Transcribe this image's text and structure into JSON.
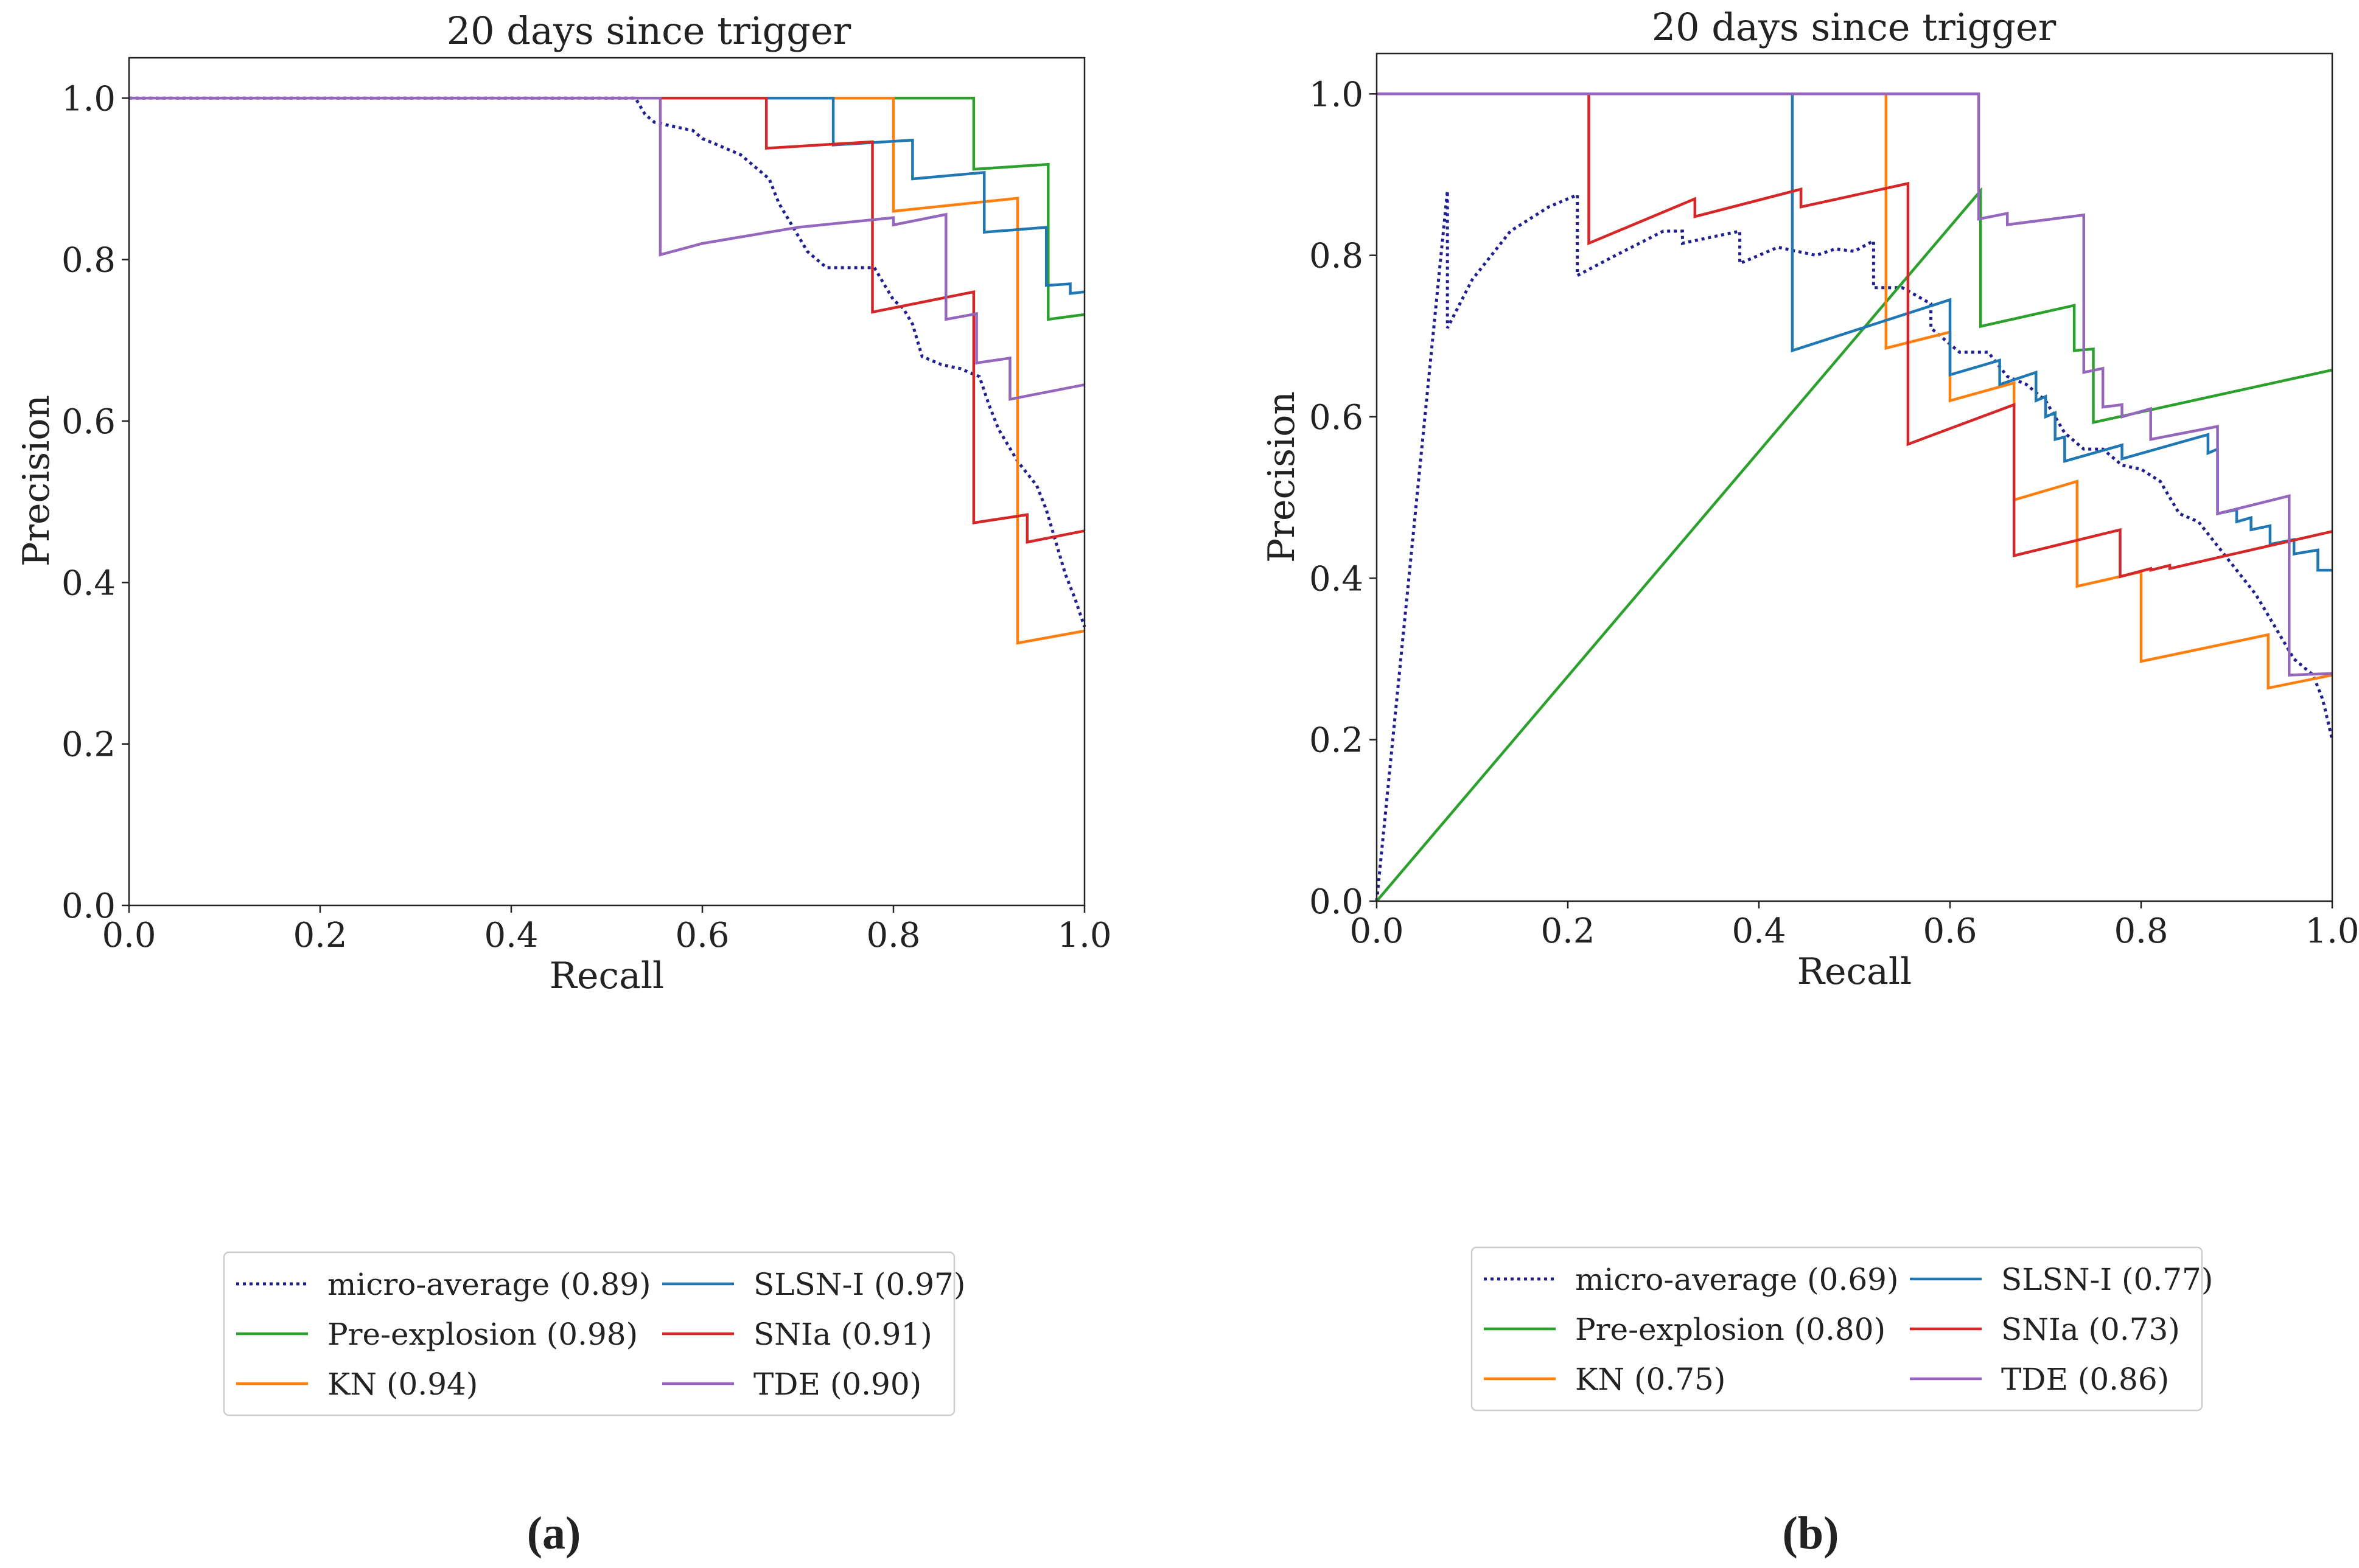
{
  "colors": {
    "micro": "#1f1f8f",
    "preexp": "#2ca02c",
    "kn": "#ff7f0e",
    "slsn": "#1f77b4",
    "snia": "#d62728",
    "tde": "#9467bd",
    "axis": "#222222"
  },
  "panels": [
    {
      "label_open": "(",
      "label_letter": "a",
      "label_close": ")"
    },
    {
      "label_open": "(",
      "label_letter": "b",
      "label_close": ")"
    }
  ],
  "chart_data": [
    {
      "type": "line",
      "title": "20 days since trigger",
      "xlabel": "Recall",
      "ylabel": "Precision",
      "xlim": [
        0,
        1
      ],
      "ylim": [
        0,
        1.05
      ],
      "xticks": [
        0.0,
        0.2,
        0.4,
        0.6,
        0.8,
        1.0
      ],
      "xtick_labels": [
        "0.0",
        "0.2",
        "0.4",
        "0.6",
        "0.8",
        "1.0"
      ],
      "yticks": [
        0.0,
        0.2,
        0.4,
        0.6,
        0.8,
        1.0
      ],
      "ytick_labels": [
        "0.0",
        "0.2",
        "0.4",
        "0.6",
        "0.8",
        "1.0"
      ],
      "legend": {
        "placement": "below-center",
        "columns": 2
      },
      "series": [
        {
          "name": "micro-average",
          "auc": "(0.89)",
          "color_key": "micro",
          "style": "dotted",
          "points": [
            [
              0,
              1
            ],
            [
              0.53,
              1
            ],
            [
              0.54,
              0.98
            ],
            [
              0.55,
              0.97
            ],
            [
              0.57,
              0.965
            ],
            [
              0.59,
              0.96
            ],
            [
              0.6,
              0.95
            ],
            [
              0.62,
              0.94
            ],
            [
              0.64,
              0.93
            ],
            [
              0.65,
              0.92
            ],
            [
              0.67,
              0.9
            ],
            [
              0.68,
              0.87
            ],
            [
              0.69,
              0.85
            ],
            [
              0.7,
              0.83
            ],
            [
              0.71,
              0.81
            ],
            [
              0.72,
              0.8
            ],
            [
              0.73,
              0.79
            ],
            [
              0.75,
              0.79
            ],
            [
              0.78,
              0.79
            ],
            [
              0.79,
              0.77
            ],
            [
              0.8,
              0.75
            ],
            [
              0.81,
              0.74
            ],
            [
              0.82,
              0.72
            ],
            [
              0.83,
              0.68
            ],
            [
              0.85,
              0.67
            ],
            [
              0.87,
              0.665
            ],
            [
              0.89,
              0.655
            ],
            [
              0.9,
              0.62
            ],
            [
              0.91,
              0.59
            ],
            [
              0.93,
              0.55
            ],
            [
              0.95,
              0.52
            ],
            [
              0.96,
              0.49
            ],
            [
              0.97,
              0.45
            ],
            [
              0.98,
              0.41
            ],
            [
              0.99,
              0.38
            ],
            [
              1.0,
              0.345
            ]
          ]
        },
        {
          "name": "Pre-explosion",
          "auc": "(0.98)",
          "color_key": "preexp",
          "style": "solid",
          "points": [
            [
              0,
              1
            ],
            [
              0.884,
              1
            ],
            [
              0.884,
              0.912
            ],
            [
              0.962,
              0.918
            ],
            [
              0.962,
              0.726
            ],
            [
              1.0,
              0.732
            ]
          ]
        },
        {
          "name": "KN",
          "auc": "(0.94)",
          "color_key": "kn",
          "style": "solid",
          "points": [
            [
              0,
              1
            ],
            [
              0.8,
              1
            ],
            [
              0.8,
              0.86
            ],
            [
              0.93,
              0.876
            ],
            [
              0.93,
              0.325
            ],
            [
              1.0,
              0.34
            ]
          ]
        },
        {
          "name": "SLSN-I",
          "auc": "(0.97)",
          "color_key": "slsn",
          "style": "solid",
          "points": [
            [
              0,
              1
            ],
            [
              0.737,
              1
            ],
            [
              0.737,
              0.942
            ],
            [
              0.82,
              0.948
            ],
            [
              0.82,
              0.9
            ],
            [
              0.895,
              0.908
            ],
            [
              0.895,
              0.834
            ],
            [
              0.96,
              0.84
            ],
            [
              0.96,
              0.768
            ],
            [
              0.985,
              0.77
            ],
            [
              0.985,
              0.758
            ],
            [
              1.0,
              0.76
            ]
          ]
        },
        {
          "name": "SNIa",
          "auc": "(0.91)",
          "color_key": "snia",
          "style": "solid",
          "points": [
            [
              0,
              1
            ],
            [
              0.667,
              1
            ],
            [
              0.667,
              0.938
            ],
            [
              0.778,
              0.946
            ],
            [
              0.778,
              0.735
            ],
            [
              0.884,
              0.76
            ],
            [
              0.884,
              0.474
            ],
            [
              0.94,
              0.484
            ],
            [
              0.94,
              0.45
            ],
            [
              1.0,
              0.464
            ]
          ]
        },
        {
          "name": "TDE",
          "auc": "(0.90)",
          "color_key": "tde",
          "style": "solid",
          "points": [
            [
              0,
              1
            ],
            [
              0.556,
              1
            ],
            [
              0.556,
              0.806
            ],
            [
              0.6,
              0.82
            ],
            [
              0.7,
              0.84
            ],
            [
              0.8,
              0.852
            ],
            [
              0.8,
              0.843
            ],
            [
              0.855,
              0.856
            ],
            [
              0.855,
              0.726
            ],
            [
              0.887,
              0.733
            ],
            [
              0.887,
              0.672
            ],
            [
              0.922,
              0.678
            ],
            [
              0.922,
              0.627
            ],
            [
              1.0,
              0.645
            ]
          ]
        }
      ]
    },
    {
      "type": "line",
      "title": "20 days since trigger",
      "xlabel": "Recall",
      "ylabel": "Precision",
      "xlim": [
        0,
        1
      ],
      "ylim": [
        0,
        1.05
      ],
      "xticks": [
        0.0,
        0.2,
        0.4,
        0.6,
        0.8,
        1.0
      ],
      "xtick_labels": [
        "0.0",
        "0.2",
        "0.4",
        "0.6",
        "0.8",
        "1.0"
      ],
      "yticks": [
        0.0,
        0.2,
        0.4,
        0.6,
        0.8,
        1.0
      ],
      "ytick_labels": [
        "0.0",
        "0.2",
        "0.4",
        "0.6",
        "0.8",
        "1.0"
      ],
      "legend": {
        "placement": "below-center",
        "columns": 2
      },
      "series": [
        {
          "name": "micro-average",
          "auc": "(0.69)",
          "color_key": "micro",
          "style": "dotted",
          "points": [
            [
              0,
              0
            ],
            [
              0.074,
              0.88
            ],
            [
              0.074,
              0.71
            ],
            [
              0.1,
              0.77
            ],
            [
              0.14,
              0.83
            ],
            [
              0.18,
              0.86
            ],
            [
              0.21,
              0.875
            ],
            [
              0.21,
              0.775
            ],
            [
              0.25,
              0.8
            ],
            [
              0.3,
              0.83
            ],
            [
              0.32,
              0.83
            ],
            [
              0.32,
              0.815
            ],
            [
              0.38,
              0.83
            ],
            [
              0.38,
              0.79
            ],
            [
              0.42,
              0.81
            ],
            [
              0.46,
              0.8
            ],
            [
              0.48,
              0.808
            ],
            [
              0.5,
              0.805
            ],
            [
              0.52,
              0.818
            ],
            [
              0.52,
              0.76
            ],
            [
              0.55,
              0.76
            ],
            [
              0.58,
              0.74
            ],
            [
              0.58,
              0.71
            ],
            [
              0.61,
              0.68
            ],
            [
              0.64,
              0.68
            ],
            [
              0.66,
              0.65
            ],
            [
              0.68,
              0.64
            ],
            [
              0.7,
              0.62
            ],
            [
              0.72,
              0.58
            ],
            [
              0.74,
              0.56
            ],
            [
              0.76,
              0.56
            ],
            [
              0.78,
              0.54
            ],
            [
              0.8,
              0.535
            ],
            [
              0.82,
              0.52
            ],
            [
              0.84,
              0.48
            ],
            [
              0.86,
              0.47
            ],
            [
              0.88,
              0.44
            ],
            [
              0.9,
              0.41
            ],
            [
              0.92,
              0.38
            ],
            [
              0.94,
              0.34
            ],
            [
              0.96,
              0.3
            ],
            [
              0.98,
              0.28
            ],
            [
              0.99,
              0.25
            ],
            [
              1.0,
              0.2
            ]
          ]
        },
        {
          "name": "Pre-explosion",
          "auc": "(0.80)",
          "color_key": "preexp",
          "style": "solid",
          "points": [
            [
              0,
              0
            ],
            [
              0.632,
              0.88
            ],
            [
              0.632,
              0.712
            ],
            [
              0.73,
              0.738
            ],
            [
              0.73,
              0.682
            ],
            [
              0.75,
              0.684
            ],
            [
              0.75,
              0.593
            ],
            [
              1.0,
              0.658
            ]
          ]
        },
        {
          "name": "KN",
          "auc": "(0.75)",
          "color_key": "kn",
          "style": "solid",
          "points": [
            [
              0,
              1
            ],
            [
              0.533,
              1
            ],
            [
              0.533,
              0.685
            ],
            [
              0.6,
              0.705
            ],
            [
              0.6,
              0.62
            ],
            [
              0.667,
              0.642
            ],
            [
              0.667,
              0.497
            ],
            [
              0.733,
              0.52
            ],
            [
              0.733,
              0.39
            ],
            [
              0.8,
              0.408
            ],
            [
              0.8,
              0.297
            ],
            [
              0.933,
              0.33
            ],
            [
              0.933,
              0.264
            ],
            [
              1.0,
              0.28
            ]
          ]
        },
        {
          "name": "SLSN-I",
          "auc": "(0.77)",
          "color_key": "slsn",
          "style": "solid",
          "points": [
            [
              0,
              1
            ],
            [
              0.435,
              1
            ],
            [
              0.435,
              0.682
            ],
            [
              0.6,
              0.745
            ],
            [
              0.6,
              0.652
            ],
            [
              0.652,
              0.67
            ],
            [
              0.652,
              0.64
            ],
            [
              0.69,
              0.655
            ],
            [
              0.69,
              0.62
            ],
            [
              0.7,
              0.625
            ],
            [
              0.7,
              0.6
            ],
            [
              0.71,
              0.605
            ],
            [
              0.71,
              0.572
            ],
            [
              0.72,
              0.575
            ],
            [
              0.72,
              0.545
            ],
            [
              0.78,
              0.565
            ],
            [
              0.78,
              0.548
            ],
            [
              0.87,
              0.578
            ],
            [
              0.87,
              0.555
            ],
            [
              0.88,
              0.56
            ],
            [
              0.88,
              0.48
            ],
            [
              0.9,
              0.485
            ],
            [
              0.9,
              0.47
            ],
            [
              0.915,
              0.475
            ],
            [
              0.915,
              0.46
            ],
            [
              0.935,
              0.465
            ],
            [
              0.935,
              0.442
            ],
            [
              0.96,
              0.448
            ],
            [
              0.96,
              0.43
            ],
            [
              0.985,
              0.435
            ],
            [
              0.985,
              0.41
            ],
            [
              1.0,
              0.41
            ]
          ]
        },
        {
          "name": "SNIa",
          "auc": "(0.73)",
          "color_key": "snia",
          "style": "solid",
          "points": [
            [
              0,
              1
            ],
            [
              0.222,
              1
            ],
            [
              0.222,
              0.815
            ],
            [
              0.333,
              0.87
            ],
            [
              0.333,
              0.848
            ],
            [
              0.444,
              0.882
            ],
            [
              0.444,
              0.86
            ],
            [
              0.556,
              0.889
            ],
            [
              0.556,
              0.566
            ],
            [
              0.667,
              0.615
            ],
            [
              0.667,
              0.428
            ],
            [
              0.778,
              0.46
            ],
            [
              0.778,
              0.402
            ],
            [
              0.81,
              0.412
            ],
            [
              0.81,
              0.41
            ],
            [
              0.83,
              0.416
            ],
            [
              0.83,
              0.412
            ],
            [
              1.0,
              0.458
            ]
          ]
        },
        {
          "name": "TDE",
          "auc": "(0.86)",
          "color_key": "tde",
          "style": "solid",
          "points": [
            [
              0,
              1
            ],
            [
              0.63,
              1
            ],
            [
              0.63,
              0.845
            ],
            [
              0.66,
              0.852
            ],
            [
              0.66,
              0.838
            ],
            [
              0.74,
              0.85
            ],
            [
              0.74,
              0.655
            ],
            [
              0.76,
              0.66
            ],
            [
              0.76,
              0.612
            ],
            [
              0.78,
              0.615
            ],
            [
              0.78,
              0.6
            ],
            [
              0.81,
              0.61
            ],
            [
              0.81,
              0.572
            ],
            [
              0.88,
              0.588
            ],
            [
              0.88,
              0.48
            ],
            [
              0.955,
              0.502
            ],
            [
              0.955,
              0.28
            ],
            [
              1.0,
              0.282
            ]
          ]
        }
      ]
    }
  ]
}
